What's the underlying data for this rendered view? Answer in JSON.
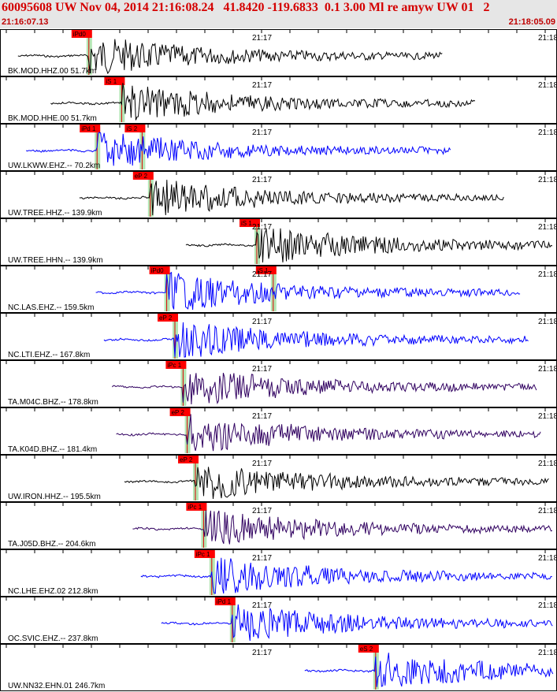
{
  "header": {
    "title": "60095608 UW Nov 04, 2014 21:16:08.24   41.8420 -119.6833  0.1 3.00 Ml re amyw UW 01   2",
    "start_time": "21:16:07.13",
    "end_time": "21:18:05.09"
  },
  "minute_labels": [
    "21:17",
    "21:18"
  ],
  "colors": {
    "pick_box": "#ff0000",
    "pick_window": "#b4e6b4",
    "trace_black": "#000000",
    "trace_blue": "#0000ff",
    "trace_purple": "#300060",
    "border": "#000000"
  },
  "channels": [
    {
      "label": "BK.MOD.HHZ.00 51.7km",
      "color_key": "trace_black",
      "picks": [
        {
          "text": "iPd0",
          "t": 0.14
        }
      ]
    },
    {
      "label": "BK.MOD.HHE.00 51.7km",
      "color_key": "trace_black",
      "picks": [
        {
          "text": "iS 1",
          "t": 0.22
        }
      ]
    },
    {
      "label": "UW.LKWW.EHZ.-- 70.2km",
      "color_key": "trace_blue",
      "picks": [
        {
          "text": "iPd 1",
          "t": 0.16
        },
        {
          "text": "iS 2",
          "t": 0.27
        }
      ]
    },
    {
      "label": "UW.TREE.HHZ.-- 139.9km",
      "color_key": "trace_black",
      "picks": [
        {
          "text": "eP 2",
          "t": 0.29
        }
      ]
    },
    {
      "label": "UW.TREE.HHN.-- 139.9km",
      "color_key": "trace_black",
      "picks": [
        {
          "text": "iS 1",
          "t": 0.55
        }
      ]
    },
    {
      "label": "NC.LAS.EHZ.-- 159.5km",
      "color_key": "trace_blue",
      "picks": [
        {
          "text": "iPd0",
          "t": 0.33
        },
        {
          "text": "iS 1",
          "t": 0.59
        }
      ]
    },
    {
      "label": "NC.LTI.EHZ.-- 167.8km",
      "color_key": "trace_blue",
      "picks": [
        {
          "text": "eP 2",
          "t": 0.35
        }
      ]
    },
    {
      "label": "TA.M04C.BHZ.-- 178.8km",
      "color_key": "trace_purple",
      "picks": [
        {
          "text": "iPc 1",
          "t": 0.37
        }
      ]
    },
    {
      "label": "TA.K04D.BHZ.-- 181.4km",
      "color_key": "trace_purple",
      "picks": [
        {
          "text": "eP 2",
          "t": 0.38
        }
      ]
    },
    {
      "label": "UW.IRON.HHZ.-- 195.5km",
      "color_key": "trace_black",
      "picks": [
        {
          "text": "eP 2",
          "t": 0.4
        }
      ]
    },
    {
      "label": "TA.J05D.BHZ.-- 204.6km",
      "color_key": "trace_purple",
      "picks": [
        {
          "text": "iPc 1",
          "t": 0.42
        }
      ]
    },
    {
      "label": "NC.LHE.EHZ.02 212.8km",
      "color_key": "trace_blue",
      "picks": [
        {
          "text": "iPc 1",
          "t": 0.44
        }
      ]
    },
    {
      "label": "OC.SVIC.EHZ.-- 237.8km",
      "color_key": "trace_blue",
      "picks": [
        {
          "text": "iPd 1",
          "t": 0.49
        }
      ]
    },
    {
      "label": "UW.NN32.EHN.01 246.7km",
      "color_key": "trace_blue",
      "picks": [
        {
          "text": "eS 2",
          "t": 0.84
        }
      ]
    }
  ]
}
